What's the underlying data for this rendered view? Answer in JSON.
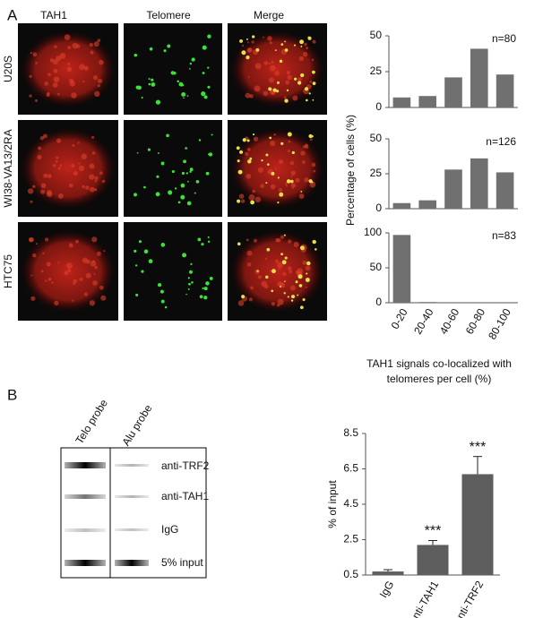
{
  "panel_a": {
    "label": "A",
    "columns": [
      "TAH1",
      "Telomere",
      "Merge"
    ],
    "rows": [
      "U20S",
      "WI38-VA13/2RA",
      "HTC75"
    ],
    "ylabel": "Percentage of cells (%)"
  },
  "panel_b": {
    "label": "B",
    "probes": [
      "Telo probe",
      "Alu probe"
    ],
    "lanes": [
      "anti-TRF2",
      "anti-TAH1",
      "IgG",
      "5% input"
    ]
  },
  "chart_data": [
    {
      "type": "bar",
      "values": [
        7,
        8,
        21,
        41,
        23
      ],
      "color": "#707070",
      "ylim": [
        0,
        50
      ],
      "yticks": [
        0,
        25,
        50
      ],
      "annotation": "n=80"
    },
    {
      "type": "bar",
      "values": [
        4,
        6,
        28,
        36,
        26
      ],
      "color": "#707070",
      "ylim": [
        0,
        50
      ],
      "yticks": [
        0,
        25,
        50
      ],
      "annotation": "n=126"
    },
    {
      "type": "bar",
      "categories": [
        "0-20",
        "20-40",
        "40-60",
        "60-80",
        "80-100"
      ],
      "values": [
        97,
        1,
        0,
        0,
        0
      ],
      "color": "#707070",
      "ylim": [
        0,
        100
      ],
      "yticks": [
        0,
        50,
        100
      ],
      "annotation": "n=83",
      "xlabel": [
        "TAH1 signals co-localized with",
        "telomeres per cell (%)"
      ]
    },
    {
      "type": "bar",
      "categories": [
        "IgG",
        "anti-TAH1",
        "anti-TRF2"
      ],
      "values": [
        0.7,
        2.2,
        6.2
      ],
      "errors": [
        0.1,
        0.25,
        1.0
      ],
      "significance": [
        null,
        "***",
        "***"
      ],
      "color": "#5e5e5e",
      "ylim": [
        0.5,
        8.5
      ],
      "yticks": [
        0.5,
        2.5,
        4.5,
        6.5,
        8.5
      ],
      "ylabel": "% of input"
    }
  ]
}
